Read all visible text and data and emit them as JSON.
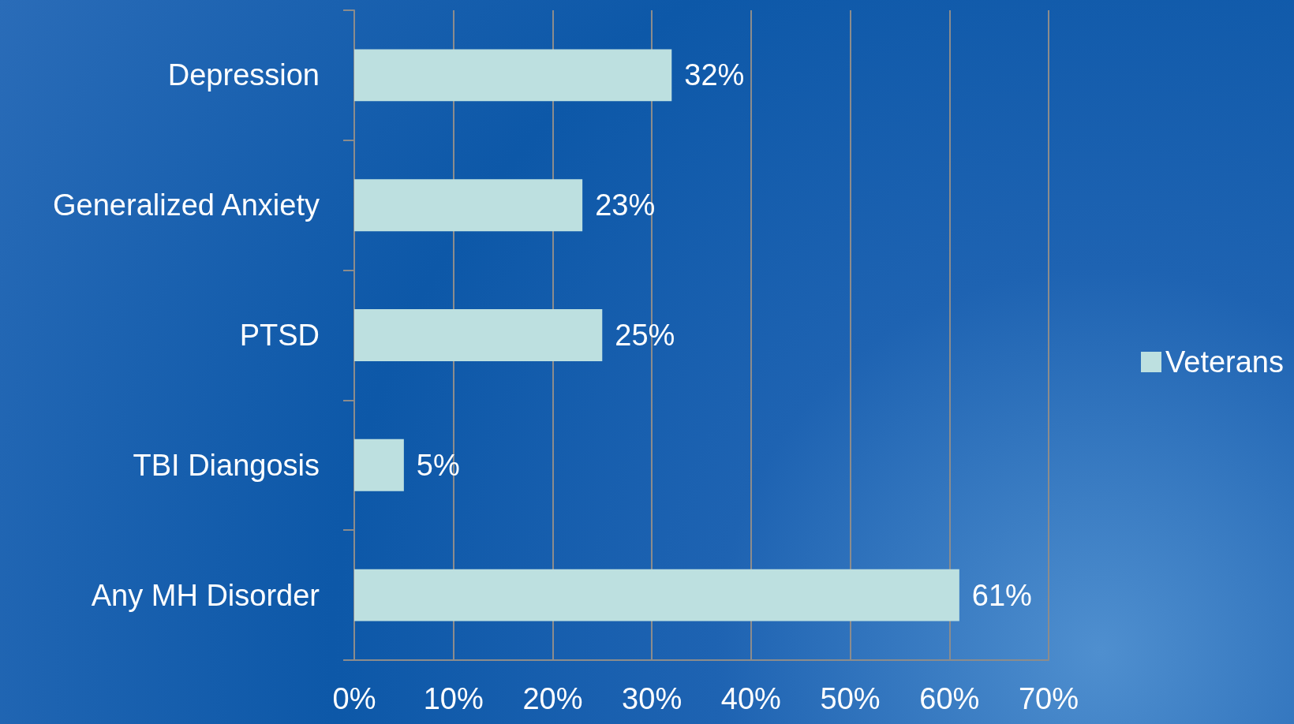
{
  "chart_data": {
    "type": "bar",
    "orientation": "horizontal",
    "categories": [
      "Depression",
      "Generalized Anxiety",
      "PTSD",
      "TBI Diangosis",
      "Any MH Disorder"
    ],
    "series": [
      {
        "name": "Veterans",
        "color": "#bde0e0",
        "values": [
          32,
          23,
          25,
          5,
          61
        ],
        "value_labels": [
          "32%",
          "23%",
          "25%",
          "5%",
          "61%"
        ]
      }
    ],
    "xlim": [
      0,
      70
    ],
    "xticks": [
      {
        "value": 0,
        "label": "0%"
      },
      {
        "value": 10,
        "label": "10%"
      },
      {
        "value": 20,
        "label": "20%"
      },
      {
        "value": 30,
        "label": "30%"
      },
      {
        "value": 40,
        "label": "40%"
      },
      {
        "value": 50,
        "label": "50%"
      },
      {
        "value": 60,
        "label": "60%"
      },
      {
        "value": 70,
        "label": "70%"
      }
    ],
    "grid": "x",
    "legend": "right"
  }
}
